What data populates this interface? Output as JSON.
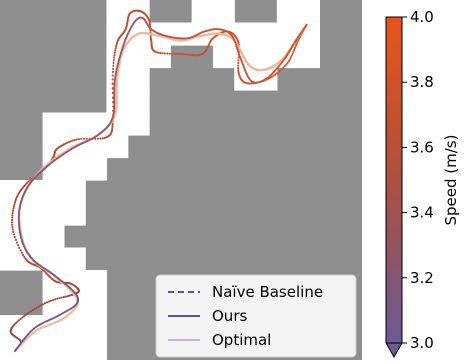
{
  "chart_data": {
    "type": "line",
    "title": "",
    "xlabel": "",
    "ylabel": "",
    "map": {
      "background_color": "#8f8f8f",
      "free_color": "#ffffff",
      "grid_cols": 17,
      "grid_rows": 16,
      "free_cells": [
        [
          5,
          0
        ],
        [
          6,
          0
        ],
        [
          9,
          0
        ],
        [
          10,
          0
        ],
        [
          13,
          0
        ],
        [
          14,
          0
        ],
        [
          5,
          1
        ],
        [
          6,
          1
        ],
        [
          7,
          1
        ],
        [
          8,
          1
        ],
        [
          9,
          1
        ],
        [
          10,
          1
        ],
        [
          11,
          1
        ],
        [
          12,
          1
        ],
        [
          13,
          1
        ],
        [
          14,
          1
        ],
        [
          5,
          2
        ],
        [
          6,
          2
        ],
        [
          7,
          2
        ],
        [
          10,
          2
        ],
        [
          11,
          2
        ],
        [
          12,
          2
        ],
        [
          13,
          2
        ],
        [
          14,
          2
        ],
        [
          5,
          3
        ],
        [
          6,
          3
        ],
        [
          11,
          3
        ],
        [
          12,
          3
        ],
        [
          5,
          4
        ],
        [
          6,
          4
        ],
        [
          2,
          5
        ],
        [
          3,
          5
        ],
        [
          4,
          5
        ],
        [
          5,
          5
        ],
        [
          6,
          5
        ],
        [
          2,
          6
        ],
        [
          3,
          6
        ],
        [
          4,
          6
        ],
        [
          5,
          6
        ],
        [
          2,
          7
        ],
        [
          3,
          7
        ],
        [
          4,
          7
        ],
        [
          0,
          8
        ],
        [
          1,
          8
        ],
        [
          2,
          8
        ],
        [
          3,
          8
        ],
        [
          0,
          9
        ],
        [
          1,
          9
        ],
        [
          2,
          9
        ],
        [
          3,
          9
        ],
        [
          0,
          10
        ],
        [
          1,
          10
        ],
        [
          2,
          10
        ],
        [
          0,
          11
        ],
        [
          1,
          11
        ],
        [
          2,
          11
        ],
        [
          3,
          11
        ],
        [
          2,
          12
        ],
        [
          3,
          12
        ],
        [
          4,
          12
        ],
        [
          2,
          13
        ],
        [
          3,
          13
        ],
        [
          4,
          13
        ],
        [
          0,
          14
        ],
        [
          1,
          14
        ],
        [
          2,
          14
        ],
        [
          3,
          14
        ],
        [
          4,
          14
        ],
        [
          0,
          15
        ],
        [
          1,
          15
        ],
        [
          2,
          15
        ],
        [
          3,
          15
        ],
        [
          4,
          15
        ]
      ]
    },
    "colorbar": {
      "label": "Speed (m/s)",
      "min": 3.0,
      "max": 4.0,
      "ticks": [
        "3.0",
        "3.2",
        "3.4",
        "3.6",
        "3.8",
        "4.0"
      ],
      "colors": [
        "#6a5a96",
        "#ad503e",
        "#e8541a"
      ]
    },
    "legend": {
      "placement": "lower-right",
      "entries": [
        {
          "label": "Naïve Baseline",
          "style": "dashed",
          "color": "#5e5190"
        },
        {
          "label": "Ours",
          "style": "solid",
          "color": "#5e5190"
        },
        {
          "label": "Optimal",
          "style": "solid",
          "color": "#c3b6d9"
        }
      ]
    },
    "series": [
      {
        "name": "Naïve Baseline",
        "style": "dotted",
        "color_start": "#a04536",
        "color_end": "#d95426",
        "points": [
          [
            0.7,
            15.6
          ],
          [
            1.0,
            15.2
          ],
          [
            0.5,
            14.7
          ],
          [
            1.2,
            14.0
          ],
          [
            2.3,
            13.4
          ],
          [
            3.4,
            13.1
          ],
          [
            3.7,
            12.9
          ],
          [
            3.3,
            12.6
          ],
          [
            2.6,
            12.5
          ],
          [
            1.9,
            11.9
          ],
          [
            1.2,
            11.5
          ],
          [
            0.6,
            10.2
          ],
          [
            0.7,
            9.0
          ],
          [
            1.2,
            8.2
          ],
          [
            2.1,
            7.5
          ],
          [
            2.5,
            7.0
          ],
          [
            2.7,
            6.6
          ],
          [
            3.6,
            6.2
          ],
          [
            5.0,
            6.1
          ],
          [
            5.3,
            5.4
          ],
          [
            5.3,
            3.2
          ],
          [
            5.5,
            1.9
          ],
          [
            5.9,
            1.3
          ],
          [
            6.1,
            0.6
          ],
          [
            6.6,
            0.5
          ],
          [
            7.0,
            0.9
          ],
          [
            7.1,
            1.8
          ],
          [
            7.3,
            2.3
          ],
          [
            8.5,
            2.4
          ],
          [
            9.5,
            2.4
          ],
          [
            10.0,
            1.7
          ],
          [
            10.7,
            1.4
          ],
          [
            11.2,
            1.9
          ],
          [
            11.2,
            3.2
          ],
          [
            11.6,
            3.7
          ],
          [
            12.6,
            3.5
          ],
          [
            13.5,
            2.8
          ],
          [
            14.0,
            1.8
          ],
          [
            14.4,
            1.1
          ]
        ]
      },
      {
        "name": "Optimal",
        "style": "solid",
        "color_start": "#eec0a6",
        "color_end": "#f2b395",
        "points": [
          [
            0.7,
            15.6
          ],
          [
            1.7,
            14.7
          ],
          [
            2.9,
            14.2
          ],
          [
            3.6,
            13.6
          ],
          [
            3.5,
            13.1
          ],
          [
            2.6,
            12.3
          ],
          [
            1.6,
            11.6
          ],
          [
            1.1,
            10.8
          ],
          [
            0.9,
            9.5
          ],
          [
            1.2,
            8.5
          ],
          [
            2.0,
            7.5
          ],
          [
            3.3,
            6.6
          ],
          [
            4.6,
            6.0
          ],
          [
            5.4,
            5.1
          ],
          [
            5.5,
            3.5
          ],
          [
            5.8,
            2.2
          ],
          [
            6.5,
            1.5
          ],
          [
            7.5,
            1.6
          ],
          [
            8.5,
            1.8
          ],
          [
            9.4,
            1.6
          ],
          [
            10.3,
            1.5
          ],
          [
            11.0,
            1.8
          ],
          [
            11.7,
            2.9
          ],
          [
            12.4,
            3.1
          ],
          [
            13.2,
            2.7
          ],
          [
            13.9,
            1.8
          ],
          [
            14.4,
            1.1
          ]
        ]
      },
      {
        "name": "Ours",
        "style": "solid",
        "color_start": "#6a5a96",
        "color_end": "#d85427",
        "points": [
          [
            0.7,
            15.6
          ],
          [
            1.6,
            14.6
          ],
          [
            2.8,
            14.0
          ],
          [
            3.6,
            13.5
          ],
          [
            3.5,
            13.0
          ],
          [
            2.5,
            12.2
          ],
          [
            1.5,
            11.5
          ],
          [
            1.0,
            10.6
          ],
          [
            0.9,
            9.4
          ],
          [
            1.3,
            8.3
          ],
          [
            2.2,
            7.4
          ],
          [
            3.4,
            6.6
          ],
          [
            4.6,
            6.0
          ],
          [
            5.3,
            5.2
          ],
          [
            5.4,
            3.5
          ],
          [
            5.8,
            2.0
          ],
          [
            6.3,
            1.0
          ],
          [
            6.7,
            0.8
          ],
          [
            7.1,
            1.3
          ],
          [
            7.8,
            1.6
          ],
          [
            8.8,
            1.7
          ],
          [
            9.6,
            1.4
          ],
          [
            10.3,
            1.3
          ],
          [
            10.9,
            1.6
          ],
          [
            11.3,
            2.6
          ],
          [
            11.8,
            3.6
          ],
          [
            12.5,
            3.5
          ],
          [
            13.3,
            2.7
          ],
          [
            13.9,
            1.8
          ],
          [
            14.4,
            1.1
          ]
        ]
      }
    ]
  }
}
